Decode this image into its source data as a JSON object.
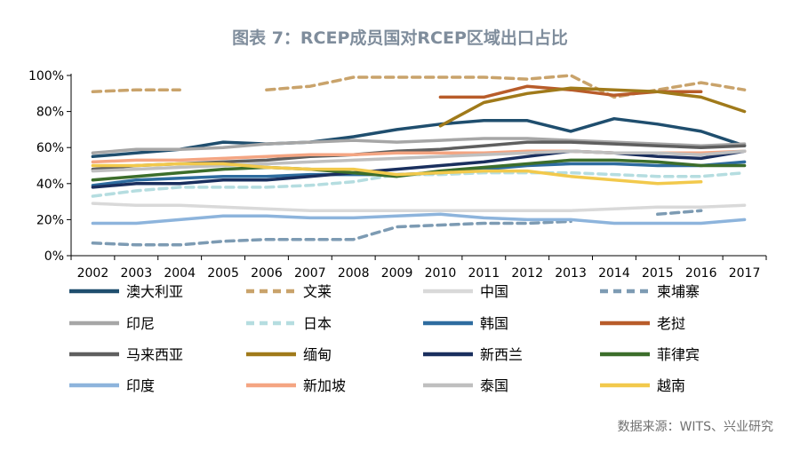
{
  "chart_data": {
    "type": "line",
    "title": "图表 7：RCEP成员国对RCEP区域出口占比",
    "xlabel": "",
    "ylabel": "",
    "categories": [
      "2002",
      "2003",
      "2004",
      "2005",
      "2006",
      "2007",
      "2008",
      "2009",
      "2010",
      "2011",
      "2012",
      "2013",
      "2014",
      "2015",
      "2016",
      "2017"
    ],
    "ylim": [
      0,
      100
    ],
    "yticks": [
      0,
      20,
      40,
      60,
      80,
      100
    ],
    "ytick_labels": [
      "0%",
      "20%",
      "40%",
      "60%",
      "80%",
      "100%"
    ],
    "legend_position": "bottom",
    "grid": false,
    "series": [
      {
        "name": "澳大利亚",
        "color": "#1f4e6e",
        "dash": false,
        "values": [
          55,
          57,
          59,
          63,
          62,
          63,
          66,
          70,
          73,
          75,
          75,
          69,
          76,
          73,
          69,
          61
        ]
      },
      {
        "name": "文莱",
        "color": "#c9a36b",
        "dash": true,
        "values": [
          91,
          92,
          92,
          null,
          92,
          94,
          99,
          99,
          99,
          99,
          98,
          100,
          88,
          92,
          96,
          92
        ]
      },
      {
        "name": "中国",
        "color": "#d9d9d9",
        "dash": false,
        "values": [
          29,
          28,
          28,
          27,
          26,
          25,
          25,
          25,
          25,
          25,
          25,
          25,
          26,
          27,
          27,
          28
        ]
      },
      {
        "name": "柬埔寨",
        "color": "#7d9bb3",
        "dash": true,
        "values": [
          7,
          6,
          6,
          8,
          9,
          9,
          9,
          16,
          17,
          18,
          18,
          19,
          null,
          23,
          25,
          null
        ]
      },
      {
        "name": "印尼",
        "color": "#a6a6a6",
        "dash": false,
        "values": [
          57,
          59,
          59,
          60,
          62,
          63,
          64,
          63,
          64,
          65,
          65,
          64,
          63,
          62,
          61,
          62
        ]
      },
      {
        "name": "日本",
        "color": "#b5dde0",
        "dash": true,
        "values": [
          33,
          36,
          38,
          38,
          38,
          39,
          41,
          45,
          45,
          46,
          46,
          46,
          45,
          44,
          44,
          46
        ]
      },
      {
        "name": "韩国",
        "color": "#2e6c9f",
        "dash": false,
        "values": [
          39,
          42,
          43,
          44,
          44,
          45,
          45,
          45,
          46,
          48,
          50,
          51,
          51,
          50,
          50,
          52
        ]
      },
      {
        "name": "老挝",
        "color": "#b85c2a",
        "dash": false,
        "values": [
          null,
          null,
          null,
          null,
          null,
          null,
          null,
          null,
          88,
          88,
          94,
          92,
          89,
          91,
          91,
          null
        ]
      },
      {
        "name": "马来西亚",
        "color": "#5f5f5f",
        "dash": false,
        "values": [
          48,
          50,
          51,
          52,
          53,
          55,
          56,
          58,
          59,
          61,
          63,
          63,
          62,
          61,
          60,
          61
        ]
      },
      {
        "name": "缅甸",
        "color": "#a07a1a",
        "dash": false,
        "values": [
          null,
          null,
          null,
          null,
          null,
          null,
          null,
          null,
          72,
          85,
          90,
          93,
          92,
          91,
          88,
          80
        ]
      },
      {
        "name": "新西兰",
        "color": "#1a2f5e",
        "dash": false,
        "values": [
          38,
          40,
          40,
          42,
          42,
          44,
          46,
          48,
          50,
          52,
          55,
          58,
          57,
          55,
          54,
          58
        ]
      },
      {
        "name": "菲律宾",
        "color": "#3c6e2b",
        "dash": false,
        "values": [
          42,
          44,
          46,
          48,
          49,
          48,
          46,
          44,
          47,
          49,
          51,
          53,
          53,
          52,
          50,
          50
        ]
      },
      {
        "name": "印度",
        "color": "#8db4dc",
        "dash": false,
        "values": [
          18,
          18,
          20,
          22,
          22,
          21,
          21,
          22,
          23,
          21,
          20,
          20,
          18,
          18,
          18,
          20
        ]
      },
      {
        "name": "新加坡",
        "color": "#f4a582",
        "dash": false,
        "values": [
          52,
          53,
          53,
          54,
          55,
          56,
          56,
          57,
          57,
          57,
          58,
          58,
          57,
          57,
          57,
          58
        ]
      },
      {
        "name": "泰国",
        "color": "#bfbfbf",
        "dash": false,
        "values": [
          47,
          48,
          49,
          50,
          51,
          52,
          53,
          54,
          55,
          56,
          57,
          58,
          57,
          57,
          56,
          58
        ]
      },
      {
        "name": "越南",
        "color": "#f2c94c",
        "dash": false,
        "values": [
          50,
          50,
          51,
          51,
          49,
          48,
          48,
          45,
          46,
          47,
          47,
          44,
          42,
          40,
          41,
          null
        ]
      }
    ]
  },
  "source": "数据来源：WITS、兴业研究"
}
